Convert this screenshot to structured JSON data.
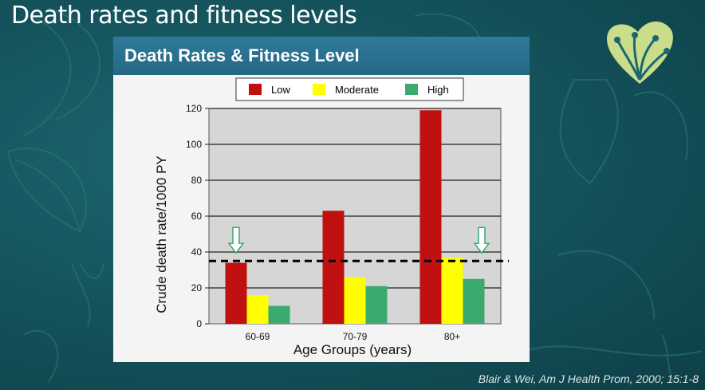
{
  "slide": {
    "title": "Death rates and fitness levels",
    "citation": "Blair & Wei, Am J Health Prom, 2000; 15:1-8"
  },
  "colors": {
    "background": "#15545d",
    "header": "#2a7090",
    "low": "#c0100f",
    "moderate": "#ffff00",
    "high": "#3aaa6e"
  },
  "chart_data": {
    "type": "bar",
    "title": "Death Rates & Fitness Level",
    "xlabel": "Age Groups (years)",
    "ylabel": "Crude death rate/1000 PY",
    "categories": [
      "60-69",
      "70-79",
      "80+"
    ],
    "series": [
      {
        "name": "Low",
        "values": [
          34,
          63,
          119
        ]
      },
      {
        "name": "Moderate",
        "values": [
          16,
          26,
          37
        ]
      },
      {
        "name": "High",
        "values": [
          10,
          21,
          25
        ]
      }
    ],
    "ylim": [
      0,
      120
    ],
    "yticks": [
      "0",
      "20",
      "40",
      "60",
      "80",
      "100",
      "120"
    ],
    "reference_line": 35,
    "arrows_over": [
      "60-69",
      "80+"
    ],
    "grid": true,
    "legend_position": "top"
  }
}
